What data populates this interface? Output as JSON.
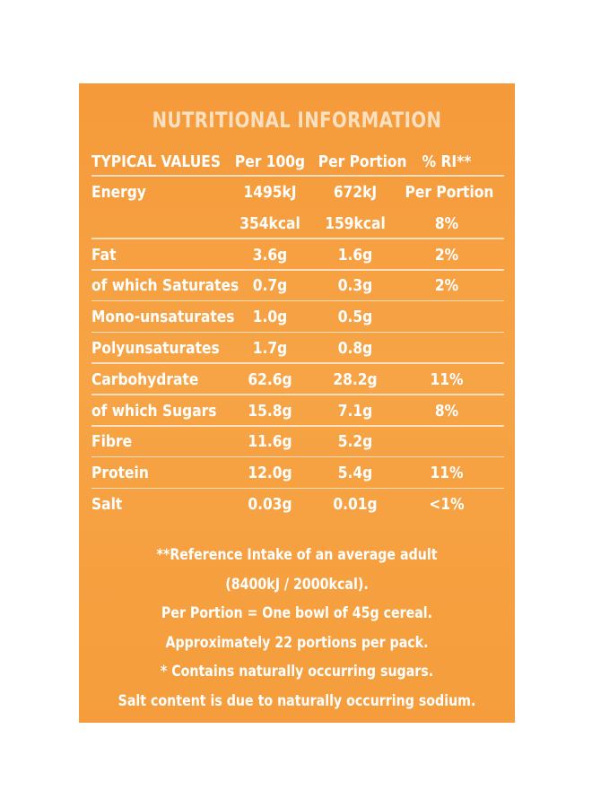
{
  "panel": {
    "title": "NUTRITIONAL INFORMATION",
    "colors": {
      "background": "#f6a242",
      "text": "#ffffff",
      "title": "#fbe0c0"
    }
  },
  "table": {
    "headers": [
      "TYPICAL VALUES",
      "Per 100g",
      "Per Portion",
      "% RI**"
    ],
    "rows": [
      [
        "Energy",
        "1495kJ",
        "672kJ",
        "Per Portion"
      ],
      [
        "",
        "354kcal",
        "159kcal",
        "8%"
      ],
      [
        "Fat",
        "3.6g",
        "1.6g",
        "2%"
      ],
      [
        "of which Saturates",
        "0.7g",
        "0.3g",
        "2%"
      ],
      [
        "Mono-unsaturates",
        "1.0g",
        "0.5g",
        ""
      ],
      [
        "Polyunsaturates",
        "1.7g",
        "0.8g",
        ""
      ],
      [
        "Carbohydrate",
        "62.6g",
        "28.2g",
        "11%"
      ],
      [
        "of which Sugars",
        "15.8g",
        "7.1g",
        "8%"
      ],
      [
        "Fibre",
        "11.6g",
        "5.2g",
        ""
      ],
      [
        "Protein",
        "12.0g",
        "5.4g",
        "11%"
      ],
      [
        "Salt",
        "0.03g",
        "0.01g",
        "<1%"
      ]
    ]
  },
  "notes": [
    "**Reference Intake of an average adult",
    "(8400kJ / 2000kcal).",
    "Per Portion = One bowl of 45g cereal.",
    "Approximately 22 portions per pack.",
    "* Contains naturally occurring sugars.",
    "Salt content is due to naturally occurring sodium."
  ]
}
